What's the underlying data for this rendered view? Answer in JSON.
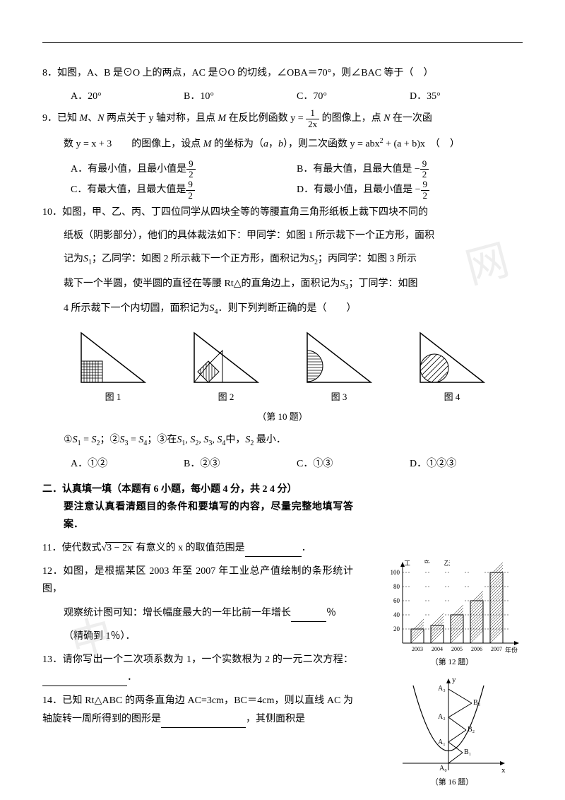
{
  "q8": {
    "text": "8．如图，A、B 是⊙O 上的两点，AC 是⊙O 的切线，∠OBA＝70°，则∠BAC 等于（　）",
    "options": {
      "a": "A．20°",
      "b": "B．10°",
      "c": "C．70°",
      "d": "D．35°"
    }
  },
  "q9": {
    "line1_pre": "9．已知 ",
    "line1_mid": "、",
    "line1_post": " 两点关于 y 轴对称，且点 ",
    "line1_post2": " 在反比例函数 ",
    "line1_post3": " 的图像上，点 ",
    "line1_post4": " 在一次函",
    "line2_pre": "数 ",
    "line2_mid": "　　的图像上，设点 ",
    "line2_post": " 的坐标为（",
    "line2_post2": "），则二次函数 ",
    "line2_post3": "　（　）",
    "M": "M",
    "N": "N",
    "a": "a",
    "b": "b",
    "comma": "，",
    "frac1_num": "1",
    "frac1_den": "2x",
    "eq1": "y = ",
    "eq2": "y = x + 3",
    "eq3_pre": "y = abx",
    "eq3_sup": "2",
    "eq3_mid": " + (a + b)x",
    "frac9_num": "9",
    "frac9_den": "2",
    "options": {
      "a": "A．有最小值，且最小值是",
      "b": "B．有最大值，且最大值是 −",
      "c": "C．有最大值，且最大值是",
      "d": "D．有最小值，且最小值是 −"
    }
  },
  "q10": {
    "line1": "10．如图，甲、乙、丙、丁四位同学从四块全等的等腰直角三角形纸板上裁下四块不同的",
    "line2": "纸板（阴影部分），他们的具体裁法如下：甲同学：如图 1 所示裁下一个正方形，面积",
    "line3_pre": "记为",
    "line3_mid": "；乙同学：如图 2 所示裁下一个正方形，面积记为",
    "line3_post": "；丙同学：如图 3 所示",
    "line4_pre": "裁下一个半圆，使半圆的直径在等腰 Rt△的直角边上，面积记为",
    "line4_post": "；丁同学：如图",
    "line5_pre": "4 所示裁下一个内切圆，面积记为",
    "line5_post": "．则下列判断正确的是（　　）",
    "S1": "S",
    "sub1": "1",
    "sub2": "2",
    "sub3": "3",
    "sub4": "4",
    "fig_captions": {
      "f1": "图 1",
      "f2": "图 2",
      "f3": "图 3",
      "f4": "图 4"
    },
    "overall_caption": "（第 10 题）",
    "statements": "①",
    "stmt_eq": " = ",
    "stmt_semi": "；②",
    "stmt_semi2": "；③在",
    "stmt_list_sep": ", ",
    "stmt_in": "中，",
    "stmt_min": " 最小．",
    "options": {
      "a": "A．①②",
      "b": "B．②③",
      "c": "C．①③",
      "d": "D．①②③"
    }
  },
  "section2": {
    "title": "二．认真填一填（本题有 6 小题，每小题 4 分，共 2 4 分）",
    "subtitle": "要注意认真看清题目的条件和要填写的内容，尽量完整地填写答案．"
  },
  "q11": {
    "pre": "11．使代数式",
    "sqrt_content": "3 − 2x",
    "post": " 有意义的 x 的取值范围是",
    "end": "．"
  },
  "q12": {
    "line1": "12．如图，是根据某区 2003 年至 2007 年工业总产值绘制的条形统计图，",
    "line2": "观察统计图可知：增长幅度最大的一年比前一年增长",
    "line3": "％",
    "line4": "（精确到 1％）．"
  },
  "q13": {
    "line1": "13．请你写出一个二次项系数为 1，一个实数根为 2 的一元二次方程：",
    "end": "．"
  },
  "q14": {
    "pre": "14．已知 Rt△ABC 的两条直角边 AC=3cm，BC＝4cm，则以直线 AC 为轴旋转一周所得到的图形是",
    "post": "，其侧面积是"
  },
  "chart": {
    "ylabel": "工业总产值（亿元）",
    "xlabel": "年份",
    "caption": "（第 12 题）",
    "y_ticks": [
      "20",
      "40",
      "60",
      "80",
      "100"
    ],
    "x_ticks": [
      "2003",
      "2004",
      "2005",
      "2006",
      "2007"
    ],
    "values": [
      20,
      25,
      40,
      60,
      100
    ]
  },
  "parabola": {
    "y_label": "y",
    "x_label": "x",
    "caption": "（第 16 题）",
    "labels": {
      "A0": "A₀",
      "A1": "A₁",
      "A2": "A₂",
      "A3": "A₃",
      "B1": "B₁",
      "B2": "B₂",
      "B3": "B₃"
    }
  }
}
